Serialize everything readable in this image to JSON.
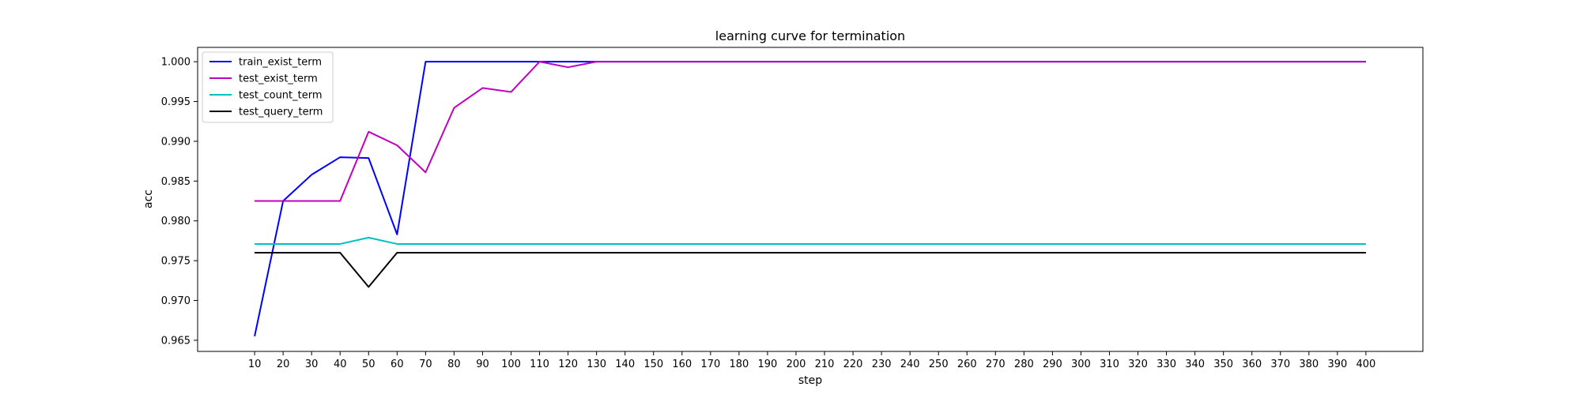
{
  "chart_data": {
    "type": "line",
    "title": "learning curve for termination",
    "xlabel": "step",
    "ylabel": "acc",
    "x": [
      10,
      20,
      30,
      40,
      50,
      60,
      70,
      80,
      90,
      100,
      110,
      120,
      130,
      140,
      150,
      160,
      170,
      180,
      190,
      200,
      210,
      220,
      230,
      240,
      250,
      260,
      270,
      280,
      290,
      300,
      310,
      320,
      330,
      340,
      350,
      360,
      370,
      380,
      390,
      400
    ],
    "xlim": [
      -10,
      420
    ],
    "ylim": [
      0.9636,
      1.0018
    ],
    "yticks": [
      0.965,
      0.97,
      0.975,
      0.98,
      0.985,
      0.99,
      0.995,
      1.0
    ],
    "ytick_labels": [
      "0.965",
      "0.970",
      "0.975",
      "0.980",
      "0.985",
      "0.990",
      "0.995",
      "1.000"
    ],
    "grid": false,
    "legend_position": "top-left",
    "series": [
      {
        "name": "train_exist_term",
        "color": "#0000ff",
        "values": [
          0.9655,
          0.9825,
          0.9858,
          0.988,
          0.9879,
          0.9783,
          1.0,
          1.0,
          1.0,
          1.0,
          1.0,
          1.0,
          1.0,
          1.0,
          1.0,
          1.0,
          1.0,
          1.0,
          1.0,
          1.0,
          1.0,
          1.0,
          1.0,
          1.0,
          1.0,
          1.0,
          1.0,
          1.0,
          1.0,
          1.0,
          1.0,
          1.0,
          1.0,
          1.0,
          1.0,
          1.0,
          1.0,
          1.0,
          1.0,
          1.0
        ]
      },
      {
        "name": "test_exist_term",
        "color": "#bf00bf",
        "values": [
          0.9825,
          0.9825,
          0.9825,
          0.9825,
          0.9912,
          0.9895,
          0.9861,
          0.9942,
          0.9967,
          0.9962,
          1.0,
          0.9993,
          1.0,
          1.0,
          1.0,
          1.0,
          1.0,
          1.0,
          1.0,
          1.0,
          1.0,
          1.0,
          1.0,
          1.0,
          1.0,
          1.0,
          1.0,
          1.0,
          1.0,
          1.0,
          1.0,
          1.0,
          1.0,
          1.0,
          1.0,
          1.0,
          1.0,
          1.0,
          1.0,
          1.0
        ]
      },
      {
        "name": "test_count_term",
        "color": "#00bfbf",
        "values": [
          0.9771,
          0.9771,
          0.9771,
          0.9771,
          0.9779,
          0.9771,
          0.9771,
          0.9771,
          0.9771,
          0.9771,
          0.9771,
          0.9771,
          0.9771,
          0.9771,
          0.9771,
          0.9771,
          0.9771,
          0.9771,
          0.9771,
          0.9771,
          0.9771,
          0.9771,
          0.9771,
          0.9771,
          0.9771,
          0.9771,
          0.9771,
          0.9771,
          0.9771,
          0.9771,
          0.9771,
          0.9771,
          0.9771,
          0.9771,
          0.9771,
          0.9771,
          0.9771,
          0.9771,
          0.9771,
          0.9771
        ]
      },
      {
        "name": "test_query_term",
        "color": "#000000",
        "values": [
          0.976,
          0.976,
          0.976,
          0.976,
          0.9717,
          0.976,
          0.976,
          0.976,
          0.976,
          0.976,
          0.976,
          0.976,
          0.976,
          0.976,
          0.976,
          0.976,
          0.976,
          0.976,
          0.976,
          0.976,
          0.976,
          0.976,
          0.976,
          0.976,
          0.976,
          0.976,
          0.976,
          0.976,
          0.976,
          0.976,
          0.976,
          0.976,
          0.976,
          0.976,
          0.976,
          0.976,
          0.976,
          0.976,
          0.976,
          0.976
        ]
      }
    ]
  }
}
